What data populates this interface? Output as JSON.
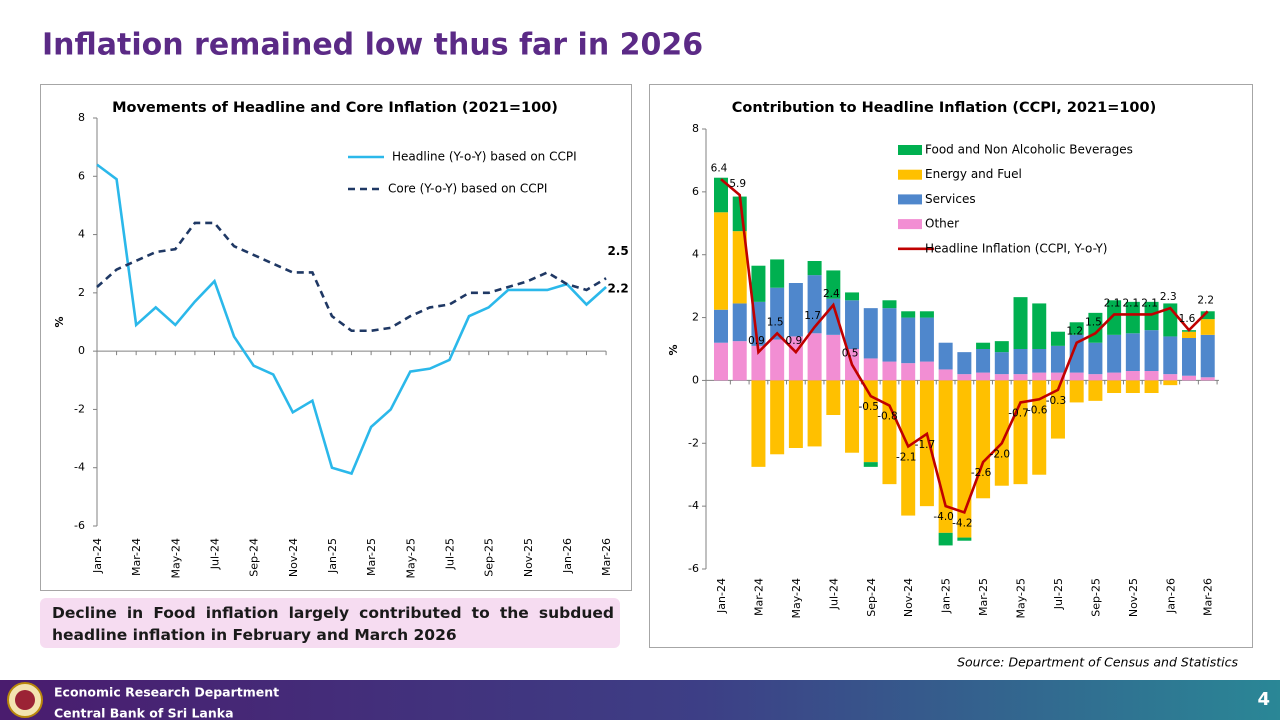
{
  "title": "Inflation remained low thus far in 2026",
  "note": "Decline in Food inflation largely contributed to the subdued headline inflation in February and March 2026",
  "source": "Source: Department of Census and Statistics",
  "footer": {
    "department": "Economic Research Department",
    "bank": "Central Bank of Sri Lanka",
    "page": 4
  },
  "chart_data": [
    {
      "type": "line",
      "title": "Movements of Headline and Core Inflation (2021=100)",
      "y_label": "%",
      "categories": [
        "Jan-24",
        null,
        "Mar-24",
        null,
        "May-24",
        null,
        "Jul-24",
        null,
        "Sep-24",
        null,
        "Nov-24",
        null,
        "Jan-25",
        null,
        "Mar-25",
        null,
        "May-25",
        null,
        "Jul-25",
        null,
        "Sep-25",
        null,
        "Nov-25",
        null,
        "Jan-26",
        null,
        "Mar-26"
      ],
      "ylim": [
        -6,
        8
      ],
      "yticks": [
        -6,
        -4,
        -2,
        0,
        2,
        4,
        6,
        8
      ],
      "series": [
        {
          "name": "Headline (Y-o-Y) based on CCPI",
          "color": "#2bb8ea",
          "dash": false,
          "values": [
            6.4,
            5.9,
            0.9,
            1.5,
            0.9,
            1.7,
            2.4,
            0.5,
            -0.5,
            -0.8,
            -2.1,
            -1.7,
            -4.0,
            -4.2,
            -2.6,
            -2.0,
            -0.7,
            -0.6,
            -0.3,
            1.2,
            1.5,
            2.1,
            2.1,
            2.1,
            2.3,
            1.6,
            2.2
          ],
          "value_labels": [
            null,
            null,
            null,
            null,
            null,
            null,
            null,
            null,
            null,
            null,
            null,
            null,
            null,
            null,
            null,
            null,
            null,
            null,
            null,
            null,
            null,
            null,
            null,
            null,
            null,
            null,
            "2.2"
          ]
        },
        {
          "name": "Core (Y-o-Y) based on CCPI",
          "color": "#1f3864",
          "dash": true,
          "values": [
            2.2,
            2.8,
            3.1,
            3.4,
            3.5,
            4.4,
            4.4,
            3.6,
            3.3,
            3.0,
            2.7,
            2.7,
            1.2,
            0.7,
            0.7,
            0.8,
            1.2,
            1.5,
            1.6,
            2.0,
            2.0,
            2.2,
            2.4,
            2.7,
            2.3,
            2.1,
            2.5
          ],
          "value_labels": [
            null,
            null,
            null,
            null,
            null,
            null,
            null,
            null,
            null,
            null,
            null,
            null,
            null,
            null,
            null,
            null,
            null,
            null,
            null,
            null,
            null,
            null,
            null,
            null,
            null,
            null,
            "2.5"
          ]
        }
      ]
    },
    {
      "type": "bar",
      "stacked": true,
      "title": "Contribution to Headline Inflation (CCPI, 2021=100)",
      "y_label": "%",
      "categories": [
        "Jan-24",
        null,
        "Mar-24",
        null,
        "May-24",
        null,
        "Jul-24",
        null,
        "Sep-24",
        null,
        "Nov-24",
        null,
        "Jan-25",
        null,
        "Mar-25",
        null,
        "May-25",
        null,
        "Jul-25",
        null,
        "Sep-25",
        null,
        "Nov-25",
        null,
        "Jan-26",
        null,
        "Mar-26"
      ],
      "ylim": [
        -6,
        8
      ],
      "yticks": [
        -6,
        -4,
        -2,
        0,
        2,
        4,
        6,
        8
      ],
      "series": [
        {
          "name": "Food and Non Alcoholic Beverages",
          "type": "bar",
          "color": "#00b050",
          "values": [
            1.1,
            1.1,
            1.15,
            0.9,
            0,
            0.45,
            0.9,
            0.25,
            -0.15,
            0.25,
            0.2,
            0.2,
            -0.4,
            -0.1,
            0.2,
            0.35,
            1.65,
            1.45,
            0.45,
            0.4,
            0.95,
            1.1,
            1.0,
            0.9,
            1.05,
            0.05,
            0.25
          ]
        },
        {
          "name": "Energy and Fuel",
          "type": "bar",
          "color": "#ffc000",
          "values": [
            3.1,
            2.3,
            -2.75,
            -2.35,
            -2.15,
            -2.1,
            -1.1,
            -2.3,
            -2.6,
            -3.3,
            -4.3,
            -4.0,
            -4.85,
            -5.0,
            -3.75,
            -3.35,
            -3.3,
            -3.0,
            -1.85,
            -0.7,
            -0.65,
            -0.4,
            -0.4,
            -0.4,
            -0.15,
            0.2,
            0.5
          ]
        },
        {
          "name": "Services",
          "type": "bar",
          "color": "#4f87cc",
          "values": [
            1.05,
            1.2,
            1.4,
            1.65,
            1.7,
            1.85,
            1.15,
            1.55,
            1.6,
            1.7,
            1.45,
            1.4,
            0.85,
            0.7,
            0.75,
            0.7,
            0.8,
            0.75,
            0.85,
            1.2,
            1.0,
            1.2,
            1.2,
            1.3,
            1.2,
            1.2,
            1.35
          ]
        },
        {
          "name": "Other",
          "type": "bar",
          "color": "#f28ed3",
          "values": [
            1.2,
            1.25,
            1.1,
            1.3,
            1.4,
            1.5,
            1.45,
            1.0,
            0.7,
            0.6,
            0.55,
            0.6,
            0.35,
            0.2,
            0.25,
            0.2,
            0.2,
            0.25,
            0.25,
            0.25,
            0.2,
            0.25,
            0.3,
            0.3,
            0.2,
            0.15,
            0.1
          ]
        },
        {
          "name": "Headline Inflation (CCPI, Y-o-Y)",
          "type": "line",
          "color": "#c00000",
          "values": [
            6.4,
            5.9,
            0.9,
            1.5,
            0.9,
            1.7,
            2.4,
            0.5,
            -0.5,
            -0.8,
            -2.1,
            -1.7,
            -4.0,
            -4.2,
            -2.6,
            -2.0,
            -0.7,
            -0.6,
            -0.3,
            1.2,
            1.5,
            2.1,
            2.1,
            2.1,
            2.3,
            1.6,
            2.2
          ],
          "value_labels": [
            "6.4",
            "5.9",
            "0.9",
            "1.5",
            "0.9",
            "1.7",
            "2.4",
            "0.5",
            "-0.5",
            "-0.8",
            "-2.1",
            "-1.7",
            "-4.0",
            "-4.2",
            "-2.6",
            "-2.0",
            "-0.7",
            "-0.6",
            "-0.3",
            "1.2",
            "1.5",
            "2.1",
            "2.1",
            "2.1",
            "2.3",
            "1.6",
            "2.2"
          ]
        }
      ]
    }
  ]
}
